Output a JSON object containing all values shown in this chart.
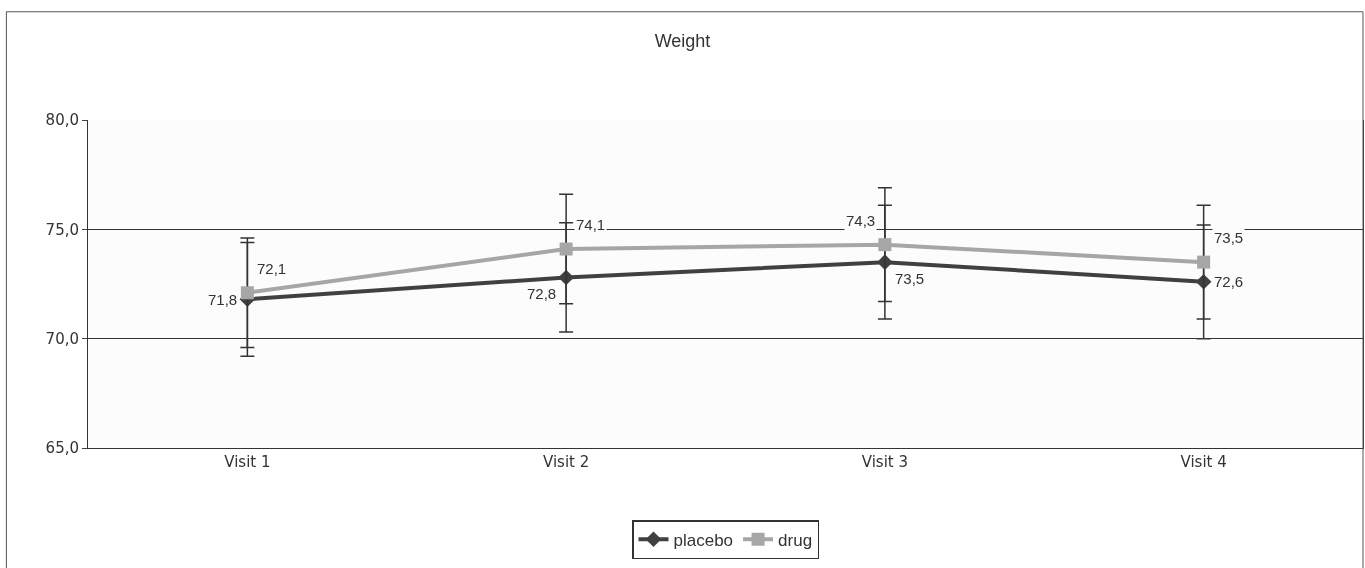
{
  "chart_data": {
    "type": "line",
    "title": "Weight",
    "categories": [
      "Visit 1",
      "Visit 2",
      "Visit 3",
      "Visit 4"
    ],
    "series": [
      {
        "name": "placebo",
        "color": "#404040",
        "marker": "diamond",
        "values": [
          71.8,
          72.8,
          73.5,
          72.6
        ],
        "errors": [
          2.6,
          2.5,
          2.6,
          2.6
        ],
        "value_labels": [
          "71,8",
          "72,8",
          "73,5",
          "72,6"
        ]
      },
      {
        "name": "drug",
        "color": "#a6a6a6",
        "marker": "square",
        "values": [
          72.1,
          74.1,
          74.3,
          73.5
        ],
        "errors": [
          2.5,
          2.5,
          2.6,
          2.6
        ],
        "value_labels": [
          "72,1",
          "74,1",
          "74,3",
          "73,5"
        ]
      }
    ],
    "ylim": [
      65,
      80
    ],
    "yticks": [
      {
        "value": 65,
        "label": "65,0"
      },
      {
        "value": 70,
        "label": "70,0"
      },
      {
        "value": 75,
        "label": "75,0"
      },
      {
        "value": 80,
        "label": "80,0"
      }
    ],
    "grid": "y",
    "legend": "bottom",
    "line_style": "solid"
  }
}
